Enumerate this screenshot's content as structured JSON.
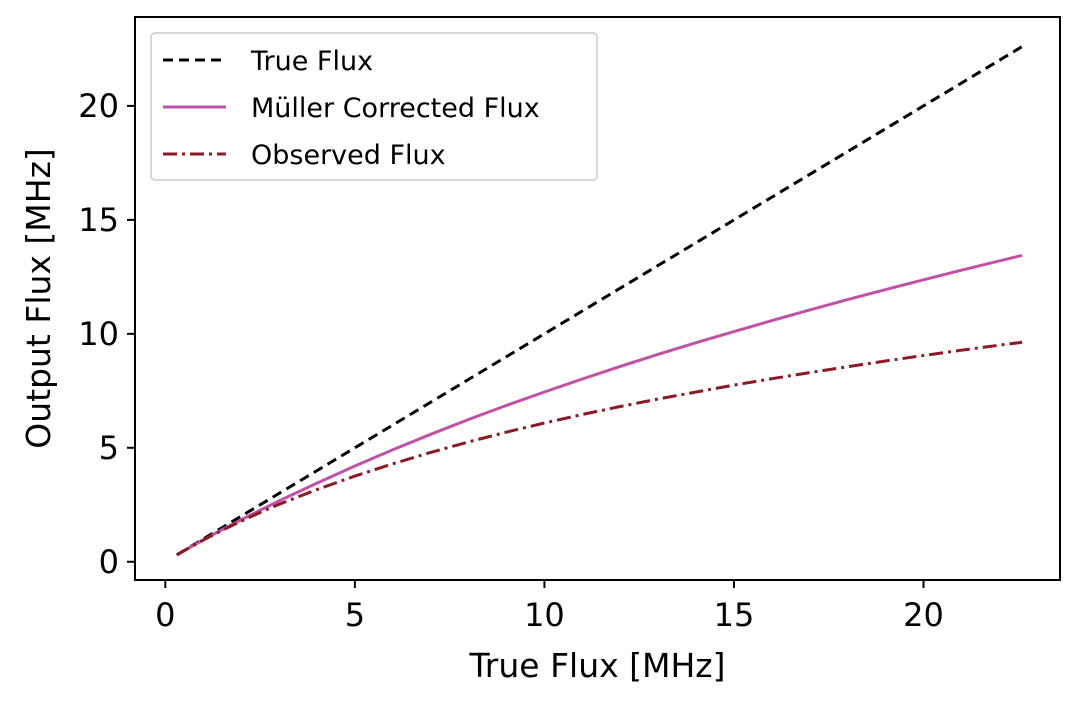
{
  "chart_data": {
    "type": "line",
    "title": "",
    "xlabel": "True Flux [MHz]",
    "ylabel": "Output Flux [MHz]",
    "xlim": [
      -0.8,
      23.6
    ],
    "ylim": [
      -0.8,
      23.9
    ],
    "xticks": [
      0,
      5,
      10,
      15,
      20
    ],
    "yticks": [
      0,
      5,
      10,
      15,
      20
    ],
    "grid": false,
    "legend_position": "upper-left",
    "x": [
      0.3,
      0.5,
      1,
      1.5,
      2,
      2.5,
      3,
      4,
      5,
      6,
      7,
      8,
      9,
      10,
      11,
      12,
      13,
      14,
      15,
      16,
      17,
      18,
      19,
      20,
      21,
      22,
      22.6
    ],
    "series": [
      {
        "name": "True Flux",
        "style": "dashed",
        "color": "#000000",
        "values": [
          0.3,
          0.5,
          1,
          1.5,
          2,
          2.5,
          3,
          4,
          5,
          6,
          7,
          8,
          9,
          10,
          11,
          12,
          13,
          14,
          15,
          16,
          17,
          18,
          19,
          20,
          21,
          22,
          22.6
        ]
      },
      {
        "name": "Müller Corrected Flux",
        "style": "solid",
        "color": "#c151a8",
        "values": [
          0.3,
          0.49,
          0.96,
          1.41,
          1.84,
          2.26,
          2.67,
          3.45,
          4.2,
          4.91,
          5.59,
          6.24,
          6.86,
          7.45,
          8.02,
          8.57,
          9.1,
          9.61,
          10.1,
          10.58,
          11.05,
          11.5,
          11.94,
          12.37,
          12.79,
          13.2,
          13.44
        ]
      },
      {
        "name": "Observed Flux",
        "style": "dashdot",
        "color": "#8b1a24",
        "values": [
          0.3,
          0.49,
          0.95,
          1.38,
          1.78,
          2.16,
          2.52,
          3.17,
          3.76,
          4.3,
          4.8,
          5.26,
          5.69,
          6.09,
          6.46,
          6.81,
          7.14,
          7.45,
          7.75,
          8.03,
          8.3,
          8.56,
          8.81,
          9.05,
          9.28,
          9.5,
          9.63
        ]
      }
    ]
  }
}
